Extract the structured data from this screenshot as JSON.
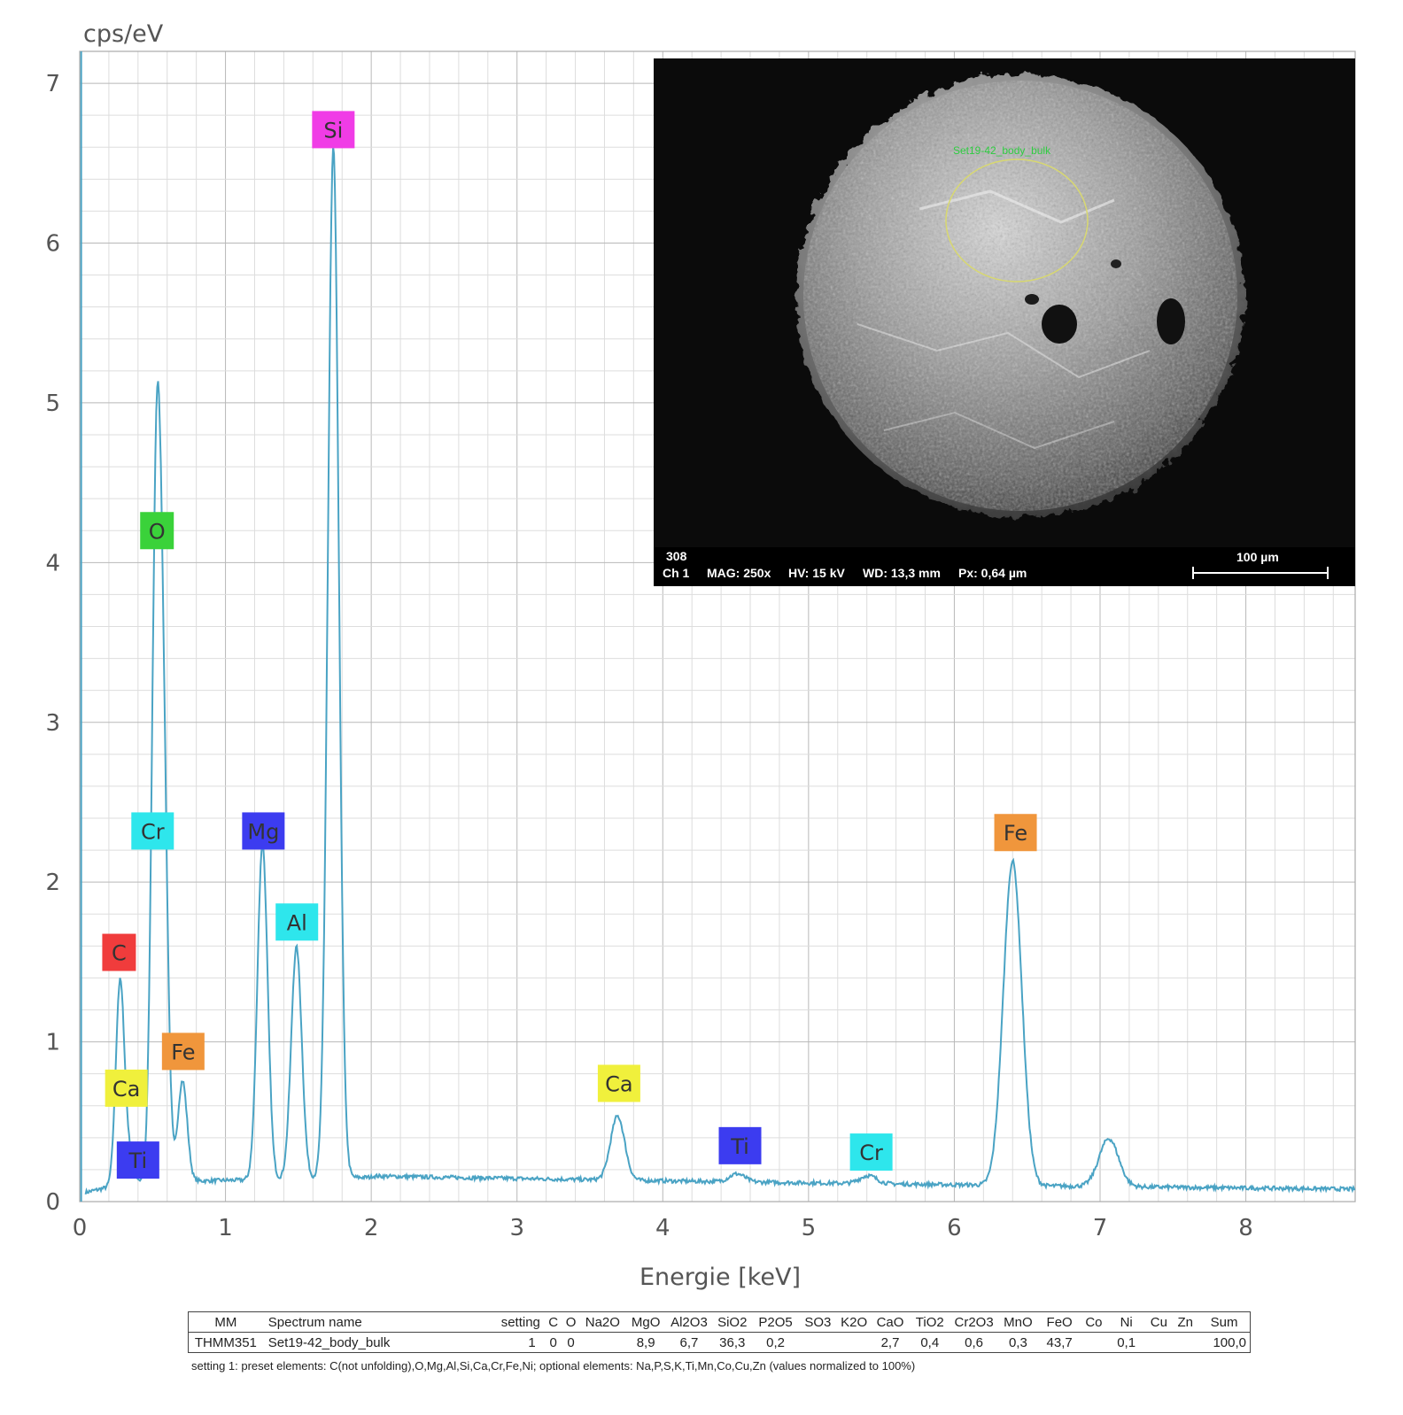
{
  "chart_data": {
    "type": "line",
    "ylabel": "cps/eV",
    "xlabel": "Energie [keV]",
    "xlim": [
      0,
      8.75
    ],
    "ylim": [
      0,
      7.2
    ],
    "x_ticks": [
      "0",
      "1",
      "2",
      "3",
      "4",
      "5",
      "6",
      "7",
      "8"
    ],
    "y_ticks": [
      "0",
      "1",
      "2",
      "3",
      "4",
      "5",
      "6",
      "7"
    ],
    "grid": true,
    "series": [
      {
        "color": "#4aa3c4",
        "peaks": [
          {
            "x": 0.277,
            "y": 1.27
          },
          {
            "x": 0.341,
            "y": 0.15
          },
          {
            "x": 0.525,
            "y": 4.1
          },
          {
            "x": 0.573,
            "y": 2.35
          },
          {
            "x": 0.705,
            "y": 0.63
          },
          {
            "x": 1.254,
            "y": 2.1
          },
          {
            "x": 1.487,
            "y": 1.45
          },
          {
            "x": 1.74,
            "y": 6.45
          },
          {
            "x": 3.69,
            "y": 0.4
          },
          {
            "x": 4.51,
            "y": 0.05
          },
          {
            "x": 5.41,
            "y": 0.05
          },
          {
            "x": 6.4,
            "y": 2.03
          },
          {
            "x": 7.06,
            "y": 0.3
          }
        ]
      }
    ],
    "peak_labels": [
      {
        "text": "Si",
        "x": 1.74,
        "y": 6.71,
        "color": "#f03ce6"
      },
      {
        "text": "O",
        "x": 0.53,
        "y": 4.2,
        "color": "#3ad23a"
      },
      {
        "text": "Cr",
        "x": 0.5,
        "y": 2.32,
        "color": "#2ee6ec"
      },
      {
        "text": "Mg",
        "x": 1.26,
        "y": 2.32,
        "color": "#3c3cf0"
      },
      {
        "text": "Al",
        "x": 1.49,
        "y": 1.75,
        "color": "#2ee6ec"
      },
      {
        "text": "C",
        "x": 0.27,
        "y": 1.56,
        "color": "#f03c3c"
      },
      {
        "text": "Fe",
        "x": 0.71,
        "y": 0.94,
        "color": "#f0963c"
      },
      {
        "text": "Ca",
        "x": 0.32,
        "y": 0.71,
        "color": "#f0f03c"
      },
      {
        "text": "Ti",
        "x": 0.4,
        "y": 0.26,
        "color": "#3c3cf0"
      },
      {
        "text": "Ca",
        "x": 3.7,
        "y": 0.74,
        "color": "#f0f03c"
      },
      {
        "text": "Ti",
        "x": 4.53,
        "y": 0.35,
        "color": "#3c3cf0"
      },
      {
        "text": "Cr",
        "x": 5.43,
        "y": 0.31,
        "color": "#2ee6ec"
      },
      {
        "text": "Fe",
        "x": 6.42,
        "y": 2.31,
        "color": "#f0963c"
      }
    ]
  },
  "sem_image": {
    "region_label": "Set19-42_body_bulk",
    "info_line1": "308",
    "info_ch": "Ch 1",
    "info_mag": "MAG: 250x",
    "info_hv": "HV: 15 kV",
    "info_wd": "WD: 13,3 mm",
    "info_px": "Px: 0,64 µm",
    "scale_bar": "100 µm"
  },
  "results_table": {
    "headers": [
      "MM",
      "Spectrum name",
      "setting",
      "C",
      "O",
      "Na2O",
      "MgO",
      "Al2O3",
      "SiO2",
      "P2O5",
      "SO3",
      "K2O",
      "CaO",
      "TiO2",
      "Cr2O3",
      "MnO",
      "FeO",
      "Co",
      "Ni",
      "Cu",
      "Zn",
      "Sum"
    ],
    "row": [
      "THMM351",
      "Set19-42_body_bulk",
      "1",
      "0",
      "0",
      "",
      "8,9",
      "6,7",
      "36,3",
      "0,2",
      "",
      "",
      "2,7",
      "0,4",
      "0,6",
      "0,3",
      "43,7",
      "",
      "0,1",
      "",
      "",
      "100,0"
    ],
    "footnote": "setting 1: preset elements: C(not unfolding),O,Mg,Al,Si,Ca,Cr,Fe,Ni; optional elements: Na,P,S,K,Ti,Mn,Co,Cu,Zn (values normalized to 100%)"
  }
}
